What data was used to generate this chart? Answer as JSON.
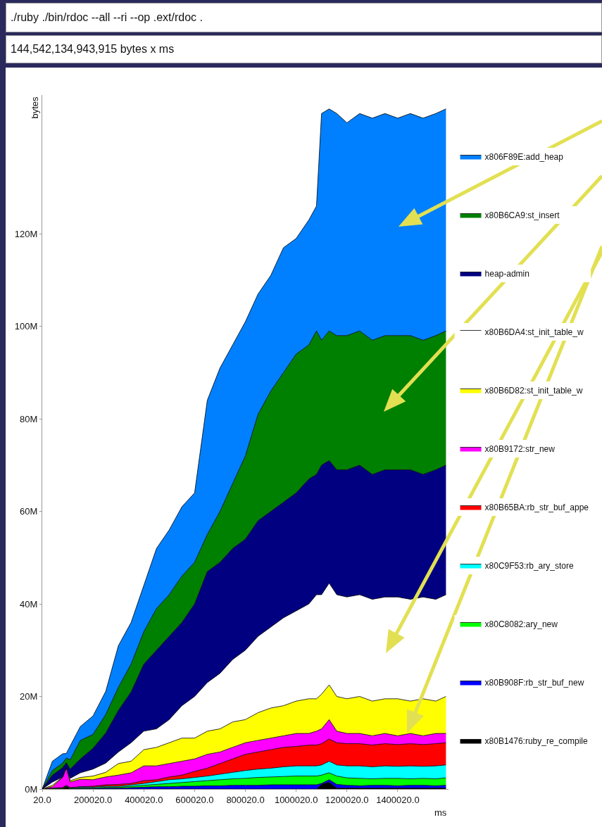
{
  "chart_data": {
    "type": "area",
    "title": "./ruby ./bin/rdoc --all --ri --op .ext/rdoc .",
    "subtitle": "144,542,134,943,915 bytes x ms",
    "xlabel": "ms",
    "ylabel": "bytes",
    "stacked": true,
    "legend": "right",
    "x": [
      20,
      40020,
      80020,
      95020,
      110020,
      150020,
      200020,
      250020,
      300020,
      350020,
      400020,
      450020,
      500020,
      550020,
      600020,
      650020,
      700020,
      750020,
      800020,
      850020,
      900020,
      950020,
      1000020,
      1050020,
      1080020,
      1100020,
      1130020,
      1160020,
      1200020,
      1250020,
      1300020,
      1350020,
      1400020,
      1450020,
      1500020,
      1550020,
      1590020
    ],
    "xlim": [
      20,
      1600020
    ],
    "xticks": [
      {
        "value": 20,
        "label": "20.0"
      },
      {
        "value": 200020,
        "label": "200020.0"
      },
      {
        "value": 400020,
        "label": "400020.0"
      },
      {
        "value": 600020,
        "label": "600020.0"
      },
      {
        "value": 800020,
        "label": "800020.0"
      },
      {
        "value": 1000020,
        "label": "1000020.0"
      },
      {
        "value": 1200020,
        "label": "1200020.0"
      },
      {
        "value": 1400020,
        "label": "1400020.0"
      }
    ],
    "ylim": [
      0,
      150
    ],
    "yticks": [
      {
        "value": 0,
        "label": "0M"
      },
      {
        "value": 20,
        "label": "20M"
      },
      {
        "value": 40,
        "label": "40M"
      },
      {
        "value": 60,
        "label": "60M"
      },
      {
        "value": 80,
        "label": "80M"
      },
      {
        "value": 100,
        "label": "100M"
      },
      {
        "value": 120,
        "label": "120M"
      }
    ],
    "series": [
      {
        "name": "x80B1476:ruby_re_compile",
        "color": "#000000",
        "values": [
          0,
          0,
          0,
          0.5,
          0,
          0,
          0,
          0,
          0,
          0,
          0,
          0,
          0,
          0,
          0,
          0,
          0,
          0,
          0,
          0,
          0,
          0,
          0,
          0,
          0,
          1,
          1.5,
          0.2,
          0.2,
          0.2,
          0.2,
          0.2,
          0.2,
          0.2,
          0.2,
          0.2,
          0.2
        ]
      },
      {
        "name": "x80B908F:rb_str_buf_new",
        "color": "#0000ff",
        "values": [
          0,
          0,
          0,
          0,
          0,
          0.1,
          0.1,
          0.2,
          0.2,
          0.3,
          0.4,
          0.5,
          0.5,
          0.6,
          0.6,
          0.7,
          0.7,
          0.8,
          0.8,
          0.8,
          0.9,
          0.9,
          0.9,
          0.9,
          0.9,
          0.2,
          0.5,
          0.8,
          0.6,
          0.5,
          0.6,
          0.6,
          0.5,
          0.6,
          0.6,
          0.5,
          0.6
        ]
      },
      {
        "name": "x80C8082:ary_new",
        "color": "#00ff00",
        "values": [
          0,
          0,
          0.1,
          0.1,
          0.1,
          0.1,
          0.1,
          0.2,
          0.2,
          0.3,
          0.4,
          0.5,
          0.7,
          0.8,
          1,
          1.1,
          1.3,
          1.4,
          1.5,
          1.7,
          1.7,
          1.8,
          1.9,
          1.9,
          1.9,
          1.8,
          1.5,
          1.8,
          1.6,
          1.6,
          1.4,
          1.5,
          1.6,
          1.4,
          1.5,
          1.5,
          1.6
        ]
      },
      {
        "name": "x80C9F53:rb_ary_store",
        "color": "#00ffff",
        "values": [
          0,
          0.1,
          0.1,
          0.1,
          0.1,
          0.2,
          0.2,
          0.2,
          0.2,
          0.3,
          0.4,
          0.6,
          0.8,
          0.8,
          0.9,
          1,
          1.2,
          1.4,
          1.7,
          1.8,
          1.9,
          2.1,
          2.2,
          2.2,
          2.2,
          2.2,
          2.5,
          2.4,
          2.6,
          2.7,
          2.6,
          2.7,
          2.6,
          2.8,
          2.6,
          2.8,
          2.8
        ]
      },
      {
        "name": "x80B65BA:rb_str_buf_appe",
        "color": "#ff0000",
        "values": [
          0,
          0.1,
          0.1,
          0.1,
          0.1,
          0.1,
          0.2,
          0.3,
          0.4,
          0.3,
          0.6,
          0.4,
          0.6,
          0.8,
          1.3,
          1.7,
          2.3,
          2.9,
          3.5,
          3.7,
          4,
          4.2,
          4.2,
          4.5,
          4.5,
          4.6,
          4.8,
          4.8,
          4.8,
          4.8,
          4.7,
          4.8,
          4.7,
          4.8,
          4.7,
          4.8,
          4.8
        ]
      },
      {
        "name": "x80B9172:str_new",
        "color": "#ff00ff",
        "values": [
          0,
          0.3,
          2.2,
          3.8,
          1.2,
          1.6,
          1.4,
          1.7,
          2,
          2.3,
          3.2,
          3,
          2.9,
          3,
          2.7,
          3,
          2.5,
          2.5,
          2.5,
          2.5,
          2.5,
          2.5,
          2.8,
          2.5,
          3,
          3.2,
          4.2,
          2.5,
          2.2,
          2.2,
          2,
          2.2,
          1.9,
          2.2,
          1.9,
          2.2,
          2
        ]
      },
      {
        "name": "x80B6D82:st_init_table_w",
        "color": "#ffff00",
        "values": [
          0,
          0.3,
          0.1,
          0.1,
          0.3,
          0.4,
          0.8,
          1,
          2.5,
          2.5,
          3.5,
          4,
          4.5,
          5,
          4.5,
          5,
          5,
          5.5,
          5,
          6,
          6.5,
          6.5,
          7,
          7.5,
          7,
          7.5,
          7.5,
          7.5,
          7.5,
          8,
          7.5,
          7.5,
          8,
          7,
          8,
          7,
          8
        ]
      },
      {
        "name": "x80B6DA4:st_init_table_w",
        "color": "#ffffff",
        "values": [
          0,
          0.7,
          0,
          0,
          0.5,
          1,
          1.5,
          2,
          2.5,
          4,
          4,
          4,
          5,
          7,
          9,
          10.5,
          12,
          13.5,
          15,
          16.5,
          17.5,
          19,
          19.5,
          20.5,
          22.5,
          21.5,
          22,
          22,
          22,
          22,
          22,
          22,
          22,
          22,
          22,
          22,
          22
        ]
      },
      {
        "name": "heap-admin",
        "color": "#000080",
        "values": [
          0,
          1.5,
          2,
          1,
          2,
          3,
          4.5,
          6.5,
          9,
          11,
          14.5,
          17,
          18,
          18,
          20,
          24,
          24,
          24,
          24,
          25,
          25,
          25,
          25.5,
          27,
          26,
          28,
          26.5,
          27,
          27.5,
          28,
          27,
          27.5,
          27.5,
          28,
          26.5,
          28,
          28
        ]
      },
      {
        "name": "x80B6CA9:st_insert",
        "color": "#008000",
        "values": [
          0,
          1,
          1,
          1,
          2,
          4,
          3,
          4,
          5,
          6,
          7,
          9,
          9,
          10,
          9,
          8,
          11,
          14,
          18,
          23,
          26,
          28,
          30,
          29,
          31,
          27,
          28,
          29,
          29,
          29,
          29,
          29,
          29,
          29,
          29,
          29,
          29
        ]
      },
      {
        "name": "x806F89E:add_heap",
        "color": "#0080ff",
        "values": [
          0,
          2,
          2,
          1,
          3,
          3,
          4,
          5,
          9,
          9,
          10,
          13,
          14,
          15,
          15,
          29,
          31,
          30,
          29,
          26,
          25,
          27,
          25,
          27,
          27,
          49,
          48,
          48,
          46,
          47,
          48,
          48,
          47,
          48,
          48,
          48,
          48
        ]
      }
    ]
  }
}
